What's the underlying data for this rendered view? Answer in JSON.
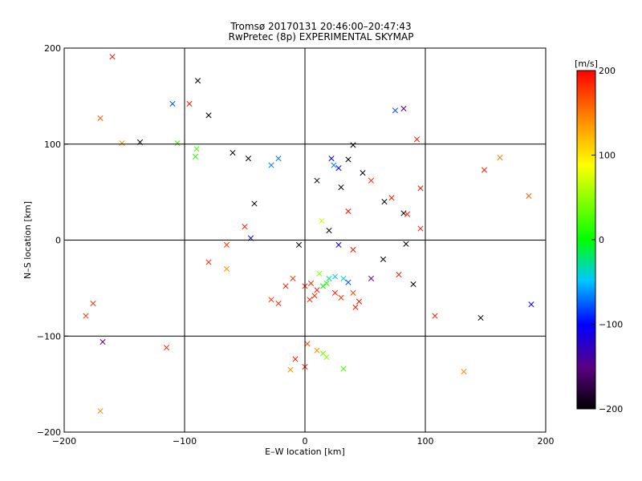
{
  "title_line1": "Tromsø 20170131 20:46:00–20:47:43",
  "title_line2": "RwPretec (8p) EXPERIMENTAL SKYMAP",
  "chart_data": {
    "type": "scatter",
    "xlabel": "E–W location [km]",
    "ylabel": "N–S location [km]",
    "xlim": [
      -200,
      200
    ],
    "ylim": [
      -200,
      200
    ],
    "xticks": [
      -200,
      -100,
      0,
      100,
      200
    ],
    "yticks": [
      -200,
      -100,
      0,
      100,
      200
    ],
    "grid": true,
    "colorbar": {
      "label": "[m/s]",
      "range": [
        -200,
        200
      ],
      "ticks": [
        200,
        100,
        0,
        -100,
        -200
      ],
      "colormap": "black-purple-blue-cyan-green-yellow-orange-red"
    },
    "markers": [
      {
        "x": -160,
        "y": 191,
        "v": 190,
        "m": "x"
      },
      {
        "x": -170,
        "y": 127,
        "v": 160,
        "m": "x"
      },
      {
        "x": -152,
        "y": 101,
        "v": 140,
        "m": "x"
      },
      {
        "x": -137,
        "y": 102,
        "v": -190,
        "m": "x"
      },
      {
        "x": -110,
        "y": 142,
        "v": -80,
        "m": "x"
      },
      {
        "x": -96,
        "y": 142,
        "v": 190,
        "m": "x"
      },
      {
        "x": -89,
        "y": 166,
        "v": -200,
        "m": "x"
      },
      {
        "x": -106,
        "y": 101,
        "v": 20,
        "m": "x"
      },
      {
        "x": -90,
        "y": 95,
        "v": 20,
        "m": "x"
      },
      {
        "x": -91,
        "y": 87,
        "v": 10,
        "m": "x"
      },
      {
        "x": -80,
        "y": 130,
        "v": -200,
        "m": "x"
      },
      {
        "x": -60,
        "y": 91,
        "v": -200,
        "m": "x"
      },
      {
        "x": -47,
        "y": 85,
        "v": -200,
        "m": "x"
      },
      {
        "x": -22,
        "y": 85,
        "v": -70,
        "m": "x"
      },
      {
        "x": -28,
        "y": 78,
        "v": -70,
        "m": "x"
      },
      {
        "x": -42,
        "y": 38,
        "v": -200,
        "m": "x"
      },
      {
        "x": -50,
        "y": 14,
        "v": 190,
        "m": "x"
      },
      {
        "x": -45,
        "y": 2,
        "v": -100,
        "m": "x"
      },
      {
        "x": -65,
        "y": -5,
        "v": 180,
        "m": "x"
      },
      {
        "x": -80,
        "y": -23,
        "v": 180,
        "m": "x"
      },
      {
        "x": -65,
        "y": -30,
        "v": 140,
        "m": "x"
      },
      {
        "x": -176,
        "y": -66,
        "v": 180,
        "m": "x"
      },
      {
        "x": -182,
        "y": -79,
        "v": 180,
        "m": "x"
      },
      {
        "x": -168,
        "y": -106,
        "v": -150,
        "m": "x"
      },
      {
        "x": -115,
        "y": -112,
        "v": 190,
        "m": "x"
      },
      {
        "x": -170,
        "y": -178,
        "v": 140,
        "m": "x"
      },
      {
        "x": -28,
        "y": -62,
        "v": 180,
        "m": "x"
      },
      {
        "x": -22,
        "y": -66,
        "v": 180,
        "m": "x"
      },
      {
        "x": -16,
        "y": -48,
        "v": 190,
        "m": "x"
      },
      {
        "x": -10,
        "y": -40,
        "v": 180,
        "m": "x"
      },
      {
        "x": 5,
        "y": -45,
        "v": 190,
        "m": "x"
      },
      {
        "x": 10,
        "y": -52,
        "v": 190,
        "m": "x"
      },
      {
        "x": 15,
        "y": -48,
        "v": 0,
        "m": "x"
      },
      {
        "x": 18,
        "y": -45,
        "v": 10,
        "m": "x"
      },
      {
        "x": 20,
        "y": -40,
        "v": -30,
        "m": "x"
      },
      {
        "x": 25,
        "y": -38,
        "v": -50,
        "m": "x"
      },
      {
        "x": 32,
        "y": -40,
        "v": -40,
        "m": "x"
      },
      {
        "x": 36,
        "y": -44,
        "v": -80,
        "m": "x"
      },
      {
        "x": 25,
        "y": -55,
        "v": 190,
        "m": "x"
      },
      {
        "x": 30,
        "y": -60,
        "v": 180,
        "m": "x"
      },
      {
        "x": 40,
        "y": -55,
        "v": 170,
        "m": "x"
      },
      {
        "x": 45,
        "y": -64,
        "v": 190,
        "m": "x"
      },
      {
        "x": 42,
        "y": -70,
        "v": 190,
        "m": "x"
      },
      {
        "x": 12,
        "y": -35,
        "v": 40,
        "m": "x"
      },
      {
        "x": 0,
        "y": -48,
        "v": 190,
        "m": "x"
      },
      {
        "x": 8,
        "y": -58,
        "v": 180,
        "m": "x"
      },
      {
        "x": 4,
        "y": -62,
        "v": 190,
        "m": "x"
      },
      {
        "x": 2,
        "y": -108,
        "v": 170,
        "m": "x"
      },
      {
        "x": 10,
        "y": -115,
        "v": 140,
        "m": "x"
      },
      {
        "x": 15,
        "y": -118,
        "v": 30,
        "m": "x"
      },
      {
        "x": 18,
        "y": -122,
        "v": 40,
        "m": "x"
      },
      {
        "x": -8,
        "y": -124,
        "v": 190,
        "m": "x"
      },
      {
        "x": 0,
        "y": -132,
        "v": 190,
        "m": "x"
      },
      {
        "x": -12,
        "y": -135,
        "v": 140,
        "m": "x"
      },
      {
        "x": 32,
        "y": -134,
        "v": 20,
        "m": "x"
      },
      {
        "x": 22,
        "y": 85,
        "v": -100,
        "m": "x"
      },
      {
        "x": 24,
        "y": 78,
        "v": -70,
        "m": "x"
      },
      {
        "x": 28,
        "y": 75,
        "v": -100,
        "m": "x"
      },
      {
        "x": 40,
        "y": 99,
        "v": -200,
        "m": "x"
      },
      {
        "x": 36,
        "y": 84,
        "v": -200,
        "m": "x"
      },
      {
        "x": 48,
        "y": 70,
        "v": -200,
        "m": "x"
      },
      {
        "x": 55,
        "y": 62,
        "v": 190,
        "m": "x"
      },
      {
        "x": 66,
        "y": 40,
        "v": -200,
        "m": "x"
      },
      {
        "x": 72,
        "y": 44,
        "v": 190,
        "m": "x"
      },
      {
        "x": 82,
        "y": 28,
        "v": -200,
        "m": "x"
      },
      {
        "x": 85,
        "y": 27,
        "v": 190,
        "m": "x"
      },
      {
        "x": 96,
        "y": 12,
        "v": 190,
        "m": "x"
      },
      {
        "x": 75,
        "y": 135,
        "v": -80,
        "m": "x"
      },
      {
        "x": 82,
        "y": 137,
        "v": -150,
        "m": "x"
      },
      {
        "x": 93,
        "y": 105,
        "v": 190,
        "m": "x"
      },
      {
        "x": 96,
        "y": 54,
        "v": 190,
        "m": "x"
      },
      {
        "x": 84,
        "y": -4,
        "v": -200,
        "m": "x"
      },
      {
        "x": 90,
        "y": -46,
        "v": -200,
        "m": "x"
      },
      {
        "x": 78,
        "y": -36,
        "v": 190,
        "m": "x"
      },
      {
        "x": 65,
        "y": -20,
        "v": -200,
        "m": "x"
      },
      {
        "x": 55,
        "y": -40,
        "v": -150,
        "m": "x"
      },
      {
        "x": 108,
        "y": -79,
        "v": 190,
        "m": "x"
      },
      {
        "x": 146,
        "y": -81,
        "v": -200,
        "m": "x"
      },
      {
        "x": 188,
        "y": -67,
        "v": -100,
        "m": "x"
      },
      {
        "x": 132,
        "y": -137,
        "v": 140,
        "m": "x"
      },
      {
        "x": 149,
        "y": 73,
        "v": 190,
        "m": "x"
      },
      {
        "x": 162,
        "y": 86,
        "v": 150,
        "m": "x"
      },
      {
        "x": 186,
        "y": 46,
        "v": 160,
        "m": "x"
      },
      {
        "x": 36,
        "y": 30,
        "v": 190,
        "m": "x"
      },
      {
        "x": 20,
        "y": 10,
        "v": -200,
        "m": "x"
      },
      {
        "x": 28,
        "y": -5,
        "v": -100,
        "m": "x"
      },
      {
        "x": 40,
        "y": -10,
        "v": 190,
        "m": "x"
      },
      {
        "x": -5,
        "y": -5,
        "v": -200,
        "m": "x"
      },
      {
        "x": 14,
        "y": 20,
        "v": 60,
        "m": "x"
      },
      {
        "x": 30,
        "y": 55,
        "v": -200,
        "m": "x"
      },
      {
        "x": 10,
        "y": 62,
        "v": -200,
        "m": "x"
      }
    ]
  }
}
